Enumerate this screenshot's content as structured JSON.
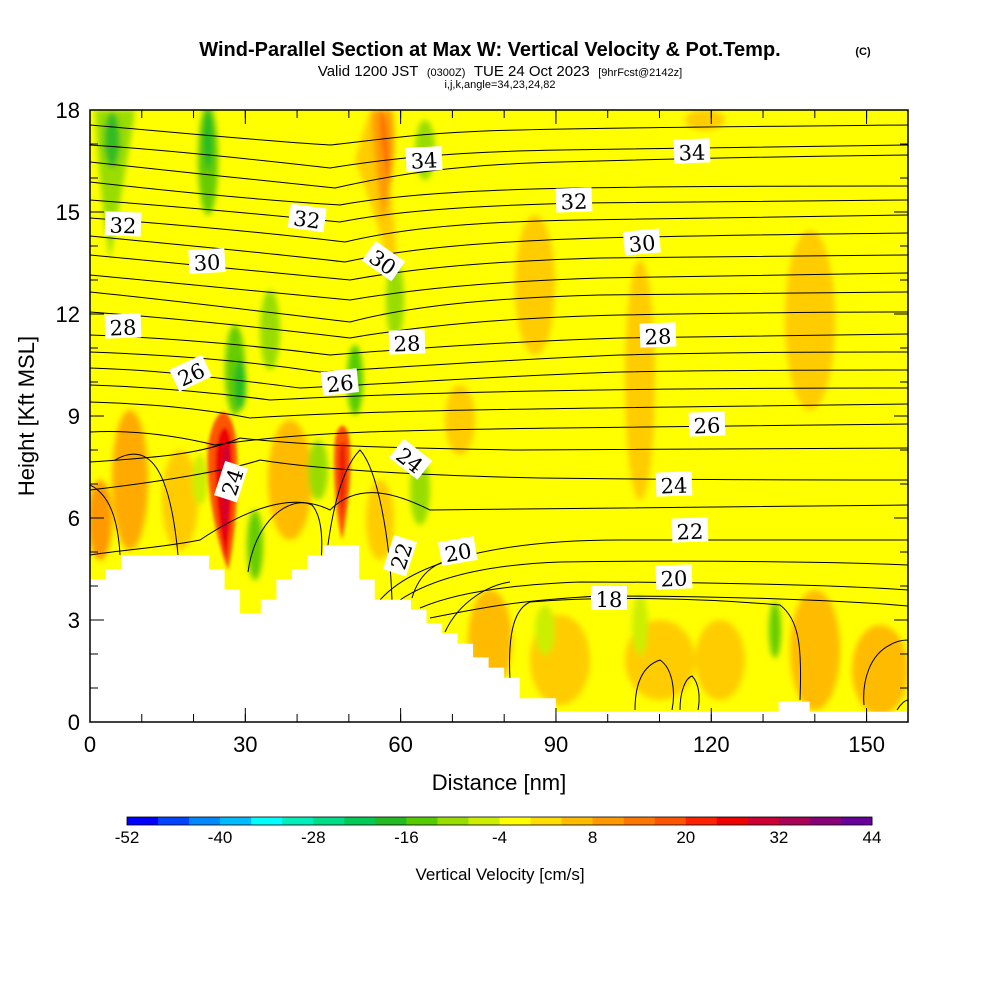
{
  "title": {
    "main": "Wind-Parallel Section at Max W: Vertical Velocity & Pot.Temp.",
    "copyright": "(C)",
    "valid_prefix": "Valid 1200 JST",
    "valid_utc": "(0300Z)",
    "valid_date": "TUE 24 Oct 2023",
    "forecast": "[9hrFcst@2142z]",
    "indices": "i,j,k,angle=34,23,24,82"
  },
  "chart_data": {
    "type": "heatmap",
    "xlabel": "Distance [nm]",
    "ylabel": "Height [Kft MSL]",
    "xlim": [
      0,
      158
    ],
    "ylim": [
      0,
      18
    ],
    "xticks": [
      0,
      30,
      60,
      90,
      120,
      150
    ],
    "yticks": [
      0,
      3,
      6,
      9,
      12,
      15,
      18
    ],
    "colorbar": {
      "title": "Vertical Velocity [cm/s]",
      "tick_labels": [
        "-52",
        "-40",
        "-28",
        "-16",
        "-4",
        "8",
        "20",
        "32",
        "44"
      ],
      "range": [
        -52,
        44
      ],
      "colors": [
        "#0000ff",
        "#0044ff",
        "#0088ff",
        "#00bbff",
        "#00ffff",
        "#00eebb",
        "#00dd88",
        "#00cc55",
        "#22bb22",
        "#55cc00",
        "#99dd00",
        "#ccee00",
        "#ffff00",
        "#ffdd00",
        "#ffbb00",
        "#ff9900",
        "#ff7700",
        "#ff5500",
        "#ff2200",
        "#ee0000",
        "#cc0033",
        "#aa0055",
        "#880077",
        "#660099"
      ]
    },
    "terrain_profile": {
      "x": [
        0,
        3,
        3,
        6,
        6,
        23,
        23,
        26,
        26,
        29,
        29,
        33,
        33,
        36,
        36,
        39,
        39,
        42,
        42,
        45,
        45,
        52,
        52,
        55,
        55,
        58,
        58,
        62,
        62,
        65,
        65,
        68,
        68,
        71,
        71,
        74,
        74,
        77,
        77,
        80,
        80,
        83,
        83,
        90,
        90,
        133,
        133,
        139,
        139,
        158
      ],
      "y": [
        4.2,
        4.2,
        4.5,
        4.5,
        4.9,
        4.9,
        4.5,
        4.5,
        3.9,
        3.9,
        3.2,
        3.2,
        3.6,
        3.6,
        4.2,
        4.2,
        4.5,
        4.5,
        4.9,
        4.9,
        5.2,
        5.2,
        4.2,
        4.2,
        3.6,
        3.6,
        3.6,
        3.6,
        3.3,
        3.3,
        2.9,
        2.9,
        2.6,
        2.6,
        2.3,
        2.3,
        1.9,
        1.9,
        1.6,
        1.6,
        1.3,
        1.3,
        0.7,
        0.7,
        0.3,
        0.3,
        0.6,
        0.6,
        0.3,
        0.3
      ]
    },
    "contour_label_values": [
      "34",
      "34",
      "32",
      "32",
      "32",
      "30",
      "30",
      "30",
      "28",
      "28",
      "28",
      "26",
      "26",
      "26",
      "24",
      "24",
      "24",
      "22",
      "22",
      "20",
      "20",
      "18"
    ]
  }
}
